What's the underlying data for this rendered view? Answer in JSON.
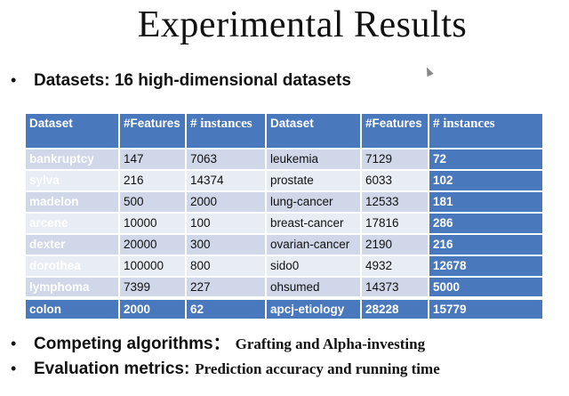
{
  "title": "Experimental Results",
  "bullets": [
    {
      "key": "Datasets: 16 high-dimensional datasets",
      "value": ""
    },
    {
      "key": "Competing algorithms：",
      "value": "Grafting and Alpha-investing"
    },
    {
      "key": "Evaluation metrics:",
      "value": "Prediction accuracy and  running time"
    }
  ],
  "table": {
    "headers": [
      "Dataset",
      "#Features",
      "# instances",
      "Dataset",
      "#Features",
      "# instances"
    ],
    "rows": [
      [
        "bankruptcy",
        "147",
        "7063",
        "leukemia",
        "7129",
        "72"
      ],
      [
        "sylva",
        "216",
        "14374",
        "prostate",
        "6033",
        "102"
      ],
      [
        "madelon",
        "500",
        "2000",
        "lung-cancer",
        "12533",
        "181"
      ],
      [
        "arcene",
        "10000",
        "100",
        "breast-cancer",
        "17816",
        "286"
      ],
      [
        "dexter",
        "20000",
        "300",
        "ovarian-cancer",
        "2190",
        "216"
      ],
      [
        "dorothea",
        "100000",
        "800",
        "sido0",
        "4932",
        "12678"
      ],
      [
        "lymphoma",
        "7399",
        "227",
        "ohsumed",
        "14373",
        "5000"
      ],
      [
        "colon",
        "2000",
        "62",
        "apcj-etiology",
        "28228",
        "15779"
      ]
    ]
  },
  "colors": {
    "table_blue": "#4a78bd",
    "row_light": "#e8ecf3",
    "row_dark": "#cfd7e8"
  }
}
